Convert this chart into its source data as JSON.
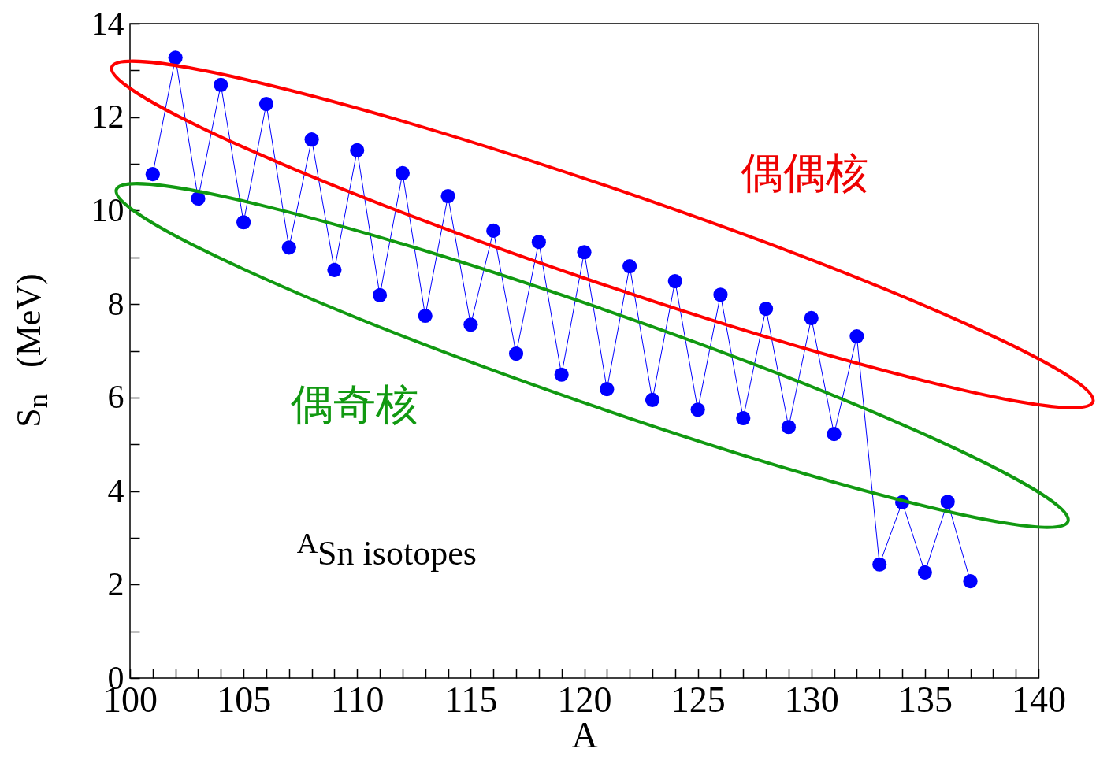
{
  "chart_data": {
    "type": "line",
    "xlabel": "A",
    "ylabel": "S$_{n}$   (MeV)",
    "x": [
      101,
      102,
      103,
      104,
      105,
      106,
      107,
      108,
      109,
      110,
      111,
      112,
      113,
      114,
      115,
      116,
      117,
      118,
      119,
      120,
      121,
      122,
      123,
      124,
      125,
      126,
      127,
      128,
      129,
      130,
      131,
      132,
      133,
      134,
      135,
      136,
      137
    ],
    "series": [
      {
        "color": "#0000ff",
        "values": [
          10.78,
          13.27,
          10.26,
          12.69,
          9.75,
          12.28,
          9.21,
          11.52,
          8.73,
          11.29,
          8.19,
          10.8,
          7.75,
          10.31,
          7.56,
          9.57,
          6.94,
          9.33,
          6.49,
          9.11,
          6.18,
          8.81,
          5.95,
          8.49,
          5.74,
          8.2,
          5.56,
          7.9,
          5.37,
          7.7,
          5.22,
          7.31,
          2.43,
          3.76,
          2.26,
          3.77,
          2.07
        ]
      }
    ],
    "xlim": [
      100,
      140
    ],
    "xticks": [
      100,
      {
        "value": 101,
        "label": null
      },
      {
        "value": 102,
        "label": null
      },
      {
        "value": 103,
        "label": null
      },
      {
        "value": 104,
        "label": null
      },
      105,
      {
        "value": 106,
        "label": null
      },
      {
        "value": 107,
        "label": null
      },
      {
        "value": 108,
        "label": null
      },
      {
        "value": 109,
        "label": null
      },
      110,
      {
        "value": 111,
        "label": null
      },
      {
        "value": 112,
        "label": null
      },
      {
        "value": 113,
        "label": null
      },
      {
        "value": 114,
        "label": null
      },
      115,
      {
        "value": 116,
        "label": null
      },
      {
        "value": 117,
        "label": null
      },
      {
        "value": 118,
        "label": null
      },
      {
        "value": 119,
        "label": null
      },
      120,
      {
        "value": 121,
        "label": null
      },
      {
        "value": 122,
        "label": null
      },
      {
        "value": 123,
        "label": null
      },
      {
        "value": 124,
        "label": null
      },
      125,
      {
        "value": 126,
        "label": null
      },
      {
        "value": 127,
        "label": null
      },
      {
        "value": 128,
        "label": null
      },
      {
        "value": 129,
        "label": null
      },
      130,
      {
        "value": 131,
        "label": null
      },
      {
        "value": 132,
        "label": null
      },
      {
        "value": 133,
        "label": null
      },
      {
        "value": 134,
        "label": null
      },
      135,
      {
        "value": 136,
        "label": null
      },
      {
        "value": 137,
        "label": null
      },
      {
        "value": 138,
        "label": null
      },
      {
        "value": 139,
        "label": null
      },
      140
    ],
    "ylim": [
      0,
      14
    ],
    "yticks": [
      0,
      {
        "value": 1,
        "label": null
      },
      2,
      {
        "value": 3,
        "label": null
      },
      4,
      {
        "value": 5,
        "label": null
      },
      6,
      {
        "value": 7,
        "label": null
      },
      8,
      {
        "value": 9,
        "label": null
      },
      10,
      {
        "value": 11,
        "label": null
      },
      12,
      {
        "value": 13,
        "label": null
      },
      14
    ],
    "marker": "circle",
    "line_style": "solid",
    "annotations": [
      "偶偶核",
      "偶奇核",
      "$^{A}$Sn isotopes"
    ]
  }
}
